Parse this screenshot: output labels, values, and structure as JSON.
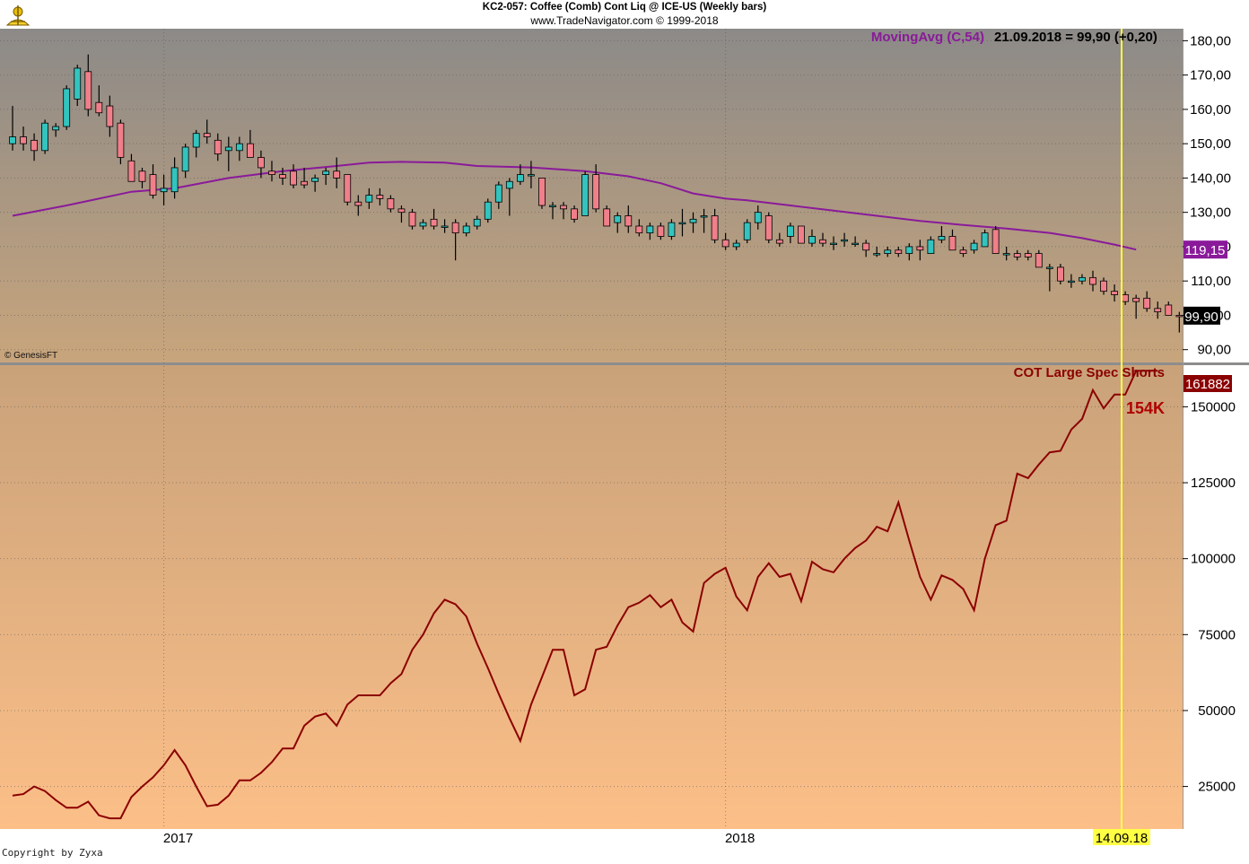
{
  "header": {
    "title": "KC2-057:  Coffee (Comb) Cont Liq @ ICE-US  (Weekly bars)",
    "subtitle": "www.TradeNavigator.com © 1999-2018"
  },
  "credit_genesis": "© GenesisFT",
  "copyright": "Copyright by Zyxa",
  "colors": {
    "up_candle": "#33c4bf",
    "down_candle": "#f07f8a",
    "moving_avg": "#8a1a9a",
    "cot_line": "#8b0000",
    "marker_line": "#ffff44",
    "top_bg_top": "#8c8a88",
    "top_bg_bottom": "#c8a57c",
    "bottom_bg_top": "#c9a27a",
    "bottom_bg_bottom": "#fcbf88"
  },
  "marker": {
    "date_label": "14.09.18"
  },
  "chart_data": [
    {
      "type": "candlestick",
      "title": "",
      "xlabel": "",
      "ylabel": "",
      "legend": {
        "label": "MovingAvg (C,54)",
        "info": "21.09.2018 = 99,90 (+0,20)"
      },
      "yticks": [
        "180,00",
        "170,00",
        "160,00",
        "150,00",
        "140,00",
        "130,00",
        "120,00",
        "110,00",
        "100,00",
        "90,00"
      ],
      "ytick_values": [
        180,
        170,
        160,
        150,
        140,
        130,
        120,
        110,
        100,
        90
      ],
      "ylim": [
        86,
        183.5
      ],
      "xticks": [
        {
          "label": "2017",
          "index": 14
        },
        {
          "label": "2018",
          "index": 66
        }
      ],
      "last_price_label": "99,90",
      "last_price": 99.9,
      "moving_avg_label": "119,15",
      "moving_avg_last": 119.15,
      "candles": [
        {
          "o": 150,
          "h": 161,
          "l": 148,
          "c": 152
        },
        {
          "o": 152,
          "h": 155,
          "l": 148,
          "c": 150
        },
        {
          "o": 151,
          "h": 153,
          "l": 145,
          "c": 148
        },
        {
          "o": 148,
          "h": 157,
          "l": 147,
          "c": 156
        },
        {
          "o": 154,
          "h": 156,
          "l": 152,
          "c": 155
        },
        {
          "o": 155,
          "h": 167,
          "l": 154,
          "c": 166
        },
        {
          "o": 163,
          "h": 173,
          "l": 161,
          "c": 172
        },
        {
          "o": 171,
          "h": 176,
          "l": 158,
          "c": 160
        },
        {
          "o": 162,
          "h": 167,
          "l": 158,
          "c": 159
        },
        {
          "o": 161,
          "h": 164,
          "l": 152,
          "c": 155
        },
        {
          "o": 156,
          "h": 157,
          "l": 144,
          "c": 146
        },
        {
          "o": 145,
          "h": 147,
          "l": 139,
          "c": 139
        },
        {
          "o": 142,
          "h": 143,
          "l": 137,
          "c": 139
        },
        {
          "o": 141,
          "h": 144,
          "l": 134,
          "c": 135
        },
        {
          "o": 136,
          "h": 141,
          "l": 132,
          "c": 137
        },
        {
          "o": 136,
          "h": 146,
          "l": 134,
          "c": 143
        },
        {
          "o": 142,
          "h": 150,
          "l": 140,
          "c": 149
        },
        {
          "o": 149,
          "h": 154,
          "l": 146,
          "c": 153
        },
        {
          "o": 153,
          "h": 157,
          "l": 150,
          "c": 152
        },
        {
          "o": 151,
          "h": 153,
          "l": 145,
          "c": 147
        },
        {
          "o": 148,
          "h": 152,
          "l": 142,
          "c": 149
        },
        {
          "o": 148,
          "h": 152,
          "l": 145,
          "c": 150
        },
        {
          "o": 150,
          "h": 154,
          "l": 146,
          "c": 146
        },
        {
          "o": 146,
          "h": 148,
          "l": 140,
          "c": 143
        },
        {
          "o": 142,
          "h": 145,
          "l": 139,
          "c": 141
        },
        {
          "o": 141,
          "h": 143,
          "l": 138,
          "c": 140
        },
        {
          "o": 142,
          "h": 144,
          "l": 137,
          "c": 138
        },
        {
          "o": 139,
          "h": 143,
          "l": 137,
          "c": 138
        },
        {
          "o": 139,
          "h": 141,
          "l": 136,
          "c": 140
        },
        {
          "o": 141,
          "h": 143,
          "l": 138,
          "c": 142
        },
        {
          "o": 142,
          "h": 146,
          "l": 137,
          "c": 140
        },
        {
          "o": 141,
          "h": 141,
          "l": 132,
          "c": 133
        },
        {
          "o": 133,
          "h": 135,
          "l": 129,
          "c": 132
        },
        {
          "o": 133,
          "h": 137,
          "l": 131,
          "c": 135
        },
        {
          "o": 135,
          "h": 137,
          "l": 132,
          "c": 134
        },
        {
          "o": 134,
          "h": 135,
          "l": 130,
          "c": 131
        },
        {
          "o": 131,
          "h": 132,
          "l": 127,
          "c": 130
        },
        {
          "o": 130,
          "h": 131,
          "l": 125,
          "c": 126
        },
        {
          "o": 126,
          "h": 128,
          "l": 125,
          "c": 127
        },
        {
          "o": 128,
          "h": 131,
          "l": 125,
          "c": 126
        },
        {
          "o": 126,
          "h": 128,
          "l": 124,
          "c": 126
        },
        {
          "o": 127,
          "h": 128,
          "l": 116,
          "c": 124
        },
        {
          "o": 124,
          "h": 127,
          "l": 123,
          "c": 126
        },
        {
          "o": 126,
          "h": 129,
          "l": 125,
          "c": 128
        },
        {
          "o": 128,
          "h": 134,
          "l": 127,
          "c": 133
        },
        {
          "o": 133,
          "h": 139,
          "l": 131,
          "c": 138
        },
        {
          "o": 137,
          "h": 140,
          "l": 129,
          "c": 139
        },
        {
          "o": 139,
          "h": 144,
          "l": 138,
          "c": 141
        },
        {
          "o": 141,
          "h": 145,
          "l": 137,
          "c": 141
        },
        {
          "o": 140,
          "h": 140,
          "l": 131,
          "c": 132
        },
        {
          "o": 132,
          "h": 133,
          "l": 128,
          "c": 132
        },
        {
          "o": 132,
          "h": 133,
          "l": 128,
          "c": 131
        },
        {
          "o": 131,
          "h": 132,
          "l": 127,
          "c": 128
        },
        {
          "o": 129,
          "h": 142,
          "l": 129,
          "c": 141
        },
        {
          "o": 141,
          "h": 144,
          "l": 130,
          "c": 131
        },
        {
          "o": 131,
          "h": 132,
          "l": 126,
          "c": 126
        },
        {
          "o": 127,
          "h": 130,
          "l": 124,
          "c": 129
        },
        {
          "o": 129,
          "h": 132,
          "l": 124,
          "c": 126
        },
        {
          "o": 126,
          "h": 128,
          "l": 123,
          "c": 124
        },
        {
          "o": 124,
          "h": 127,
          "l": 122,
          "c": 126
        },
        {
          "o": 126,
          "h": 127,
          "l": 122,
          "c": 123
        },
        {
          "o": 123,
          "h": 128,
          "l": 122,
          "c": 127
        },
        {
          "o": 127,
          "h": 131,
          "l": 123,
          "c": 127
        },
        {
          "o": 127,
          "h": 130,
          "l": 124,
          "c": 128
        },
        {
          "o": 129,
          "h": 131,
          "l": 124,
          "c": 129
        },
        {
          "o": 129,
          "h": 131,
          "l": 121,
          "c": 122
        },
        {
          "o": 122,
          "h": 124,
          "l": 119,
          "c": 120
        },
        {
          "o": 120,
          "h": 122,
          "l": 119,
          "c": 121
        },
        {
          "o": 122,
          "h": 128,
          "l": 121,
          "c": 127
        },
        {
          "o": 127,
          "h": 132,
          "l": 125,
          "c": 130
        },
        {
          "o": 129,
          "h": 130,
          "l": 121,
          "c": 122
        },
        {
          "o": 122,
          "h": 124,
          "l": 120,
          "c": 121
        },
        {
          "o": 123,
          "h": 127,
          "l": 121,
          "c": 126
        },
        {
          "o": 126,
          "h": 126,
          "l": 121,
          "c": 121
        },
        {
          "o": 121,
          "h": 125,
          "l": 120,
          "c": 123
        },
        {
          "o": 122,
          "h": 124,
          "l": 120,
          "c": 121
        },
        {
          "o": 121,
          "h": 123,
          "l": 119,
          "c": 121
        },
        {
          "o": 122,
          "h": 124,
          "l": 120,
          "c": 122
        },
        {
          "o": 121,
          "h": 123,
          "l": 120,
          "c": 121
        },
        {
          "o": 121,
          "h": 122,
          "l": 117,
          "c": 119
        },
        {
          "o": 118,
          "h": 120,
          "l": 117,
          "c": 118
        },
        {
          "o": 118,
          "h": 120,
          "l": 117,
          "c": 119
        },
        {
          "o": 119,
          "h": 120,
          "l": 117,
          "c": 118
        },
        {
          "o": 118,
          "h": 121,
          "l": 116,
          "c": 120
        },
        {
          "o": 120,
          "h": 122,
          "l": 116,
          "c": 119
        },
        {
          "o": 118,
          "h": 123,
          "l": 118,
          "c": 122
        },
        {
          "o": 122,
          "h": 126,
          "l": 121,
          "c": 123
        },
        {
          "o": 123,
          "h": 125,
          "l": 119,
          "c": 119
        },
        {
          "o": 119,
          "h": 120,
          "l": 117,
          "c": 118
        },
        {
          "o": 119,
          "h": 122,
          "l": 118,
          "c": 121
        },
        {
          "o": 120,
          "h": 125,
          "l": 120,
          "c": 124
        },
        {
          "o": 125,
          "h": 126,
          "l": 118,
          "c": 118
        },
        {
          "o": 118,
          "h": 120,
          "l": 116,
          "c": 118
        },
        {
          "o": 118,
          "h": 119,
          "l": 116,
          "c": 117
        },
        {
          "o": 118,
          "h": 119,
          "l": 116,
          "c": 117
        },
        {
          "o": 118,
          "h": 119,
          "l": 114,
          "c": 114
        },
        {
          "o": 114,
          "h": 115,
          "l": 107,
          "c": 114
        },
        {
          "o": 114,
          "h": 115,
          "l": 109,
          "c": 110
        },
        {
          "o": 110,
          "h": 112,
          "l": 108,
          "c": 110
        },
        {
          "o": 110,
          "h": 112,
          "l": 109,
          "c": 111
        },
        {
          "o": 111,
          "h": 113,
          "l": 107,
          "c": 109
        },
        {
          "o": 110,
          "h": 111,
          "l": 106,
          "c": 107
        },
        {
          "o": 107,
          "h": 109,
          "l": 104,
          "c": 106
        },
        {
          "o": 106,
          "h": 107,
          "l": 103,
          "c": 104
        },
        {
          "o": 105,
          "h": 106,
          "l": 99,
          "c": 104
        },
        {
          "o": 105,
          "h": 107,
          "l": 101,
          "c": 102
        },
        {
          "o": 102,
          "h": 104,
          "l": 99,
          "c": 101
        },
        {
          "o": 103,
          "h": 104,
          "l": 100,
          "c": 100
        },
        {
          "o": 100,
          "h": 101,
          "l": 95,
          "c": 99.9
        }
      ],
      "moving_avg": [
        {
          "i": 0,
          "v": 129
        },
        {
          "i": 5,
          "v": 132
        },
        {
          "i": 8,
          "v": 134
        },
        {
          "i": 11,
          "v": 136
        },
        {
          "i": 15,
          "v": 137
        },
        {
          "i": 20,
          "v": 140
        },
        {
          "i": 25,
          "v": 142
        },
        {
          "i": 30,
          "v": 143.5
        },
        {
          "i": 33,
          "v": 144.5
        },
        {
          "i": 36,
          "v": 144.7
        },
        {
          "i": 40,
          "v": 144.5
        },
        {
          "i": 43,
          "v": 143.5
        },
        {
          "i": 48,
          "v": 143.1
        },
        {
          "i": 53,
          "v": 142
        },
        {
          "i": 57,
          "v": 140.5
        },
        {
          "i": 60,
          "v": 138.5
        },
        {
          "i": 63,
          "v": 135.5
        },
        {
          "i": 66,
          "v": 134
        },
        {
          "i": 68,
          "v": 133.5
        },
        {
          "i": 72,
          "v": 132
        },
        {
          "i": 76,
          "v": 130.5
        },
        {
          "i": 80,
          "v": 129
        },
        {
          "i": 84,
          "v": 127.5
        },
        {
          "i": 88,
          "v": 126.3
        },
        {
          "i": 92,
          "v": 125.3
        },
        {
          "i": 96,
          "v": 124
        },
        {
          "i": 99,
          "v": 122.5
        },
        {
          "i": 102,
          "v": 120.6
        },
        {
          "i": 104,
          "v": 119.15
        }
      ]
    },
    {
      "type": "line",
      "title": "",
      "xlabel": "",
      "ylabel": "",
      "series_label": "COT Large Spec Shorts",
      "last_value_label": "161882",
      "annotation": "154K",
      "yticks": [
        "150000",
        "125000",
        "100000",
        "75000",
        "50000",
        "25000"
      ],
      "ytick_values": [
        150000,
        125000,
        100000,
        75000,
        50000,
        25000
      ],
      "ylim": [
        11000,
        163700
      ],
      "x": [
        0,
        1,
        2,
        3,
        4,
        5,
        6,
        7,
        8,
        9,
        10,
        11,
        12,
        13,
        14,
        15,
        16,
        17,
        18,
        19,
        20,
        21,
        22,
        23,
        24,
        25,
        26,
        27,
        28,
        29,
        30,
        31,
        32,
        33,
        34,
        35,
        36,
        37,
        38,
        39,
        40,
        41,
        42,
        43,
        44,
        45,
        46,
        47,
        48,
        49,
        50,
        51,
        52,
        53,
        54,
        55,
        56,
        57,
        58,
        59,
        60,
        61,
        62,
        63,
        64,
        65,
        66,
        67,
        68,
        69,
        70,
        71,
        72,
        73,
        74,
        75,
        76,
        77,
        78,
        79,
        80,
        81,
        82,
        83,
        84,
        85,
        86,
        87,
        88,
        89,
        90,
        91,
        92,
        93,
        94,
        95,
        96,
        97,
        98,
        99,
        100,
        101,
        102,
        103,
        104,
        105,
        106
      ],
      "values": [
        22000,
        22500,
        25000,
        23500,
        20500,
        18000,
        18000,
        20000,
        15500,
        14500,
        14500,
        21500,
        25000,
        28000,
        32000,
        37000,
        32000,
        25000,
        18500,
        19000,
        22000,
        27000,
        27000,
        29500,
        33000,
        37500,
        37500,
        45000,
        48000,
        49000,
        45000,
        52000,
        55000,
        55000,
        55000,
        59000,
        62000,
        70000,
        75000,
        82000,
        86500,
        85000,
        81000,
        72000,
        64000,
        55500,
        47500,
        40000,
        52000,
        61000,
        70000,
        70000,
        55000,
        57000,
        70000,
        71000,
        78000,
        84000,
        85500,
        88000,
        84000,
        86500,
        79000,
        76000,
        92000,
        95000,
        97000,
        87500,
        83000,
        94000,
        98500,
        94000,
        95000,
        86000,
        99000,
        96500,
        95500,
        100000,
        103500,
        106000,
        110500,
        109000,
        118500,
        106000,
        94000,
        86500,
        94500,
        93000,
        90000,
        83000,
        100000,
        111000,
        112500,
        128000,
        126500,
        131000,
        135000,
        135500,
        142500,
        146000,
        155500,
        149500,
        154000,
        154000,
        161882,
        161882,
        161882
      ]
    }
  ]
}
